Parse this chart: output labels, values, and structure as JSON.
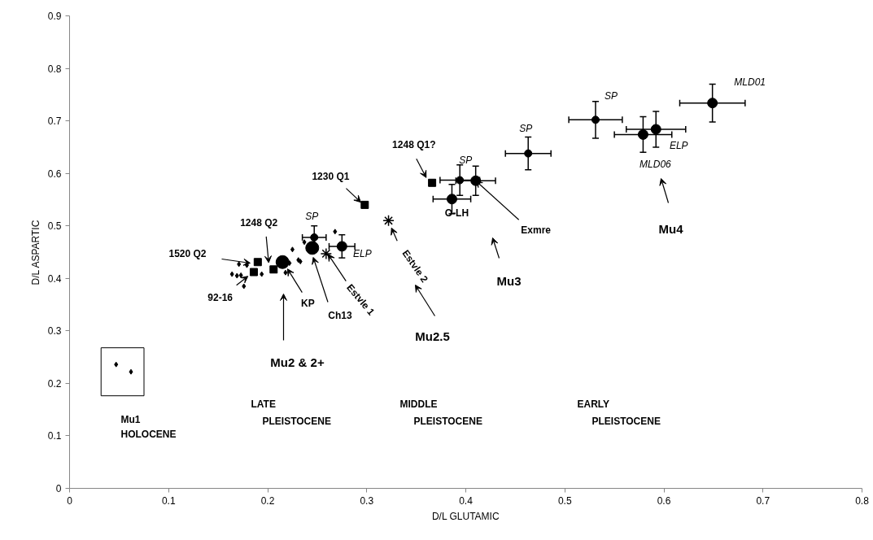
{
  "chart_data": {
    "type": "scatter",
    "xlabel": "D/L GLUTAMIC",
    "ylabel": "D/L ASPARTIC",
    "xlim": [
      0,
      0.8
    ],
    "ylim": [
      0,
      0.9
    ],
    "xticks": [
      0,
      0.1,
      0.2,
      0.3,
      0.4,
      0.5,
      0.6,
      0.7,
      0.8
    ],
    "yticks": [
      0,
      0.1,
      0.2,
      0.3,
      0.4,
      0.5,
      0.6,
      0.7,
      0.8,
      0.9
    ],
    "grid": false,
    "series": [
      {
        "marker": "diamond",
        "color": "#000000",
        "x": [
          0.047,
          0.062
        ],
        "values": [
          0.236,
          0.222
        ]
      },
      {
        "marker": "diamond",
        "color": "#000000",
        "x": [
          0.171,
          0.164,
          0.169,
          0.173,
          0.176,
          0.179,
          0.194,
          0.218,
          0.222,
          0.225,
          0.231,
          0.233,
          0.237,
          0.268
        ],
        "values": [
          0.427,
          0.408,
          0.405,
          0.406,
          0.385,
          0.425,
          0.408,
          0.411,
          0.429,
          0.455,
          0.435,
          0.432,
          0.469,
          0.489
        ]
      },
      {
        "marker": "square",
        "color": "#000000",
        "x": [
          0.19,
          0.186,
          0.206,
          0.298,
          0.366
        ],
        "values": [
          0.431,
          0.412,
          0.417,
          0.54,
          0.582
        ]
      },
      {
        "marker": "cross",
        "color": "#000000",
        "x": [
          0.259,
          0.322
        ],
        "values": [
          0.447,
          0.51
        ]
      },
      {
        "marker": "circle",
        "color": "#000000",
        "x": [
          0.247,
          0.394,
          0.463,
          0.531
        ],
        "values": [
          0.478,
          0.587,
          0.638,
          0.702
        ],
        "errors": [
          0.022,
          0.029,
          0.031,
          0.035
        ],
        "xerrors": [
          0.012,
          0.02,
          0.023,
          0.027
        ]
      },
      {
        "marker": "circle",
        "color": "#000000",
        "x": [
          0.275,
          0.41,
          0.386,
          0.579,
          0.592,
          0.649
        ],
        "values": [
          0.461,
          0.586,
          0.551,
          0.674,
          0.684,
          0.734
        ],
        "errors": [
          0.022,
          0.028,
          0.028,
          0.034,
          0.034,
          0.036
        ],
        "xerrors": [
          0.013,
          0.02,
          0.019,
          0.029,
          0.03,
          0.033
        ]
      },
      {
        "marker": "circle",
        "color": "#000000",
        "x": [
          0.215,
          0.245
        ],
        "values": [
          0.431,
          0.458
        ]
      }
    ],
    "annotations": [
      "1520 Q2",
      {
        "text": "1248 Q2",
        "x": 0.201,
        "y": 0.43
      },
      {
        "text": "92-16",
        "x": 0.18,
        "y": 0.404
      },
      {
        "text": "KP",
        "x": 0.22,
        "y": 0.418
      },
      {
        "text": "Ch13",
        "x": 0.246,
        "y": 0.44
      },
      {
        "text": "Estvle 1",
        "x": 0.261,
        "y": 0.446
      },
      {
        "text": "1230 Q1",
        "x": 0.294,
        "y": 0.545
      },
      {
        "text": "Estvle 2",
        "x": 0.325,
        "y": 0.496
      },
      {
        "text": "1248 Q1?",
        "x": 0.36,
        "y": 0.592
      },
      {
        "text": "Exmre",
        "x": 0.41,
        "y": 0.586
      },
      {
        "text": "SP",
        "x": 0.247,
        "y": 0.478
      },
      {
        "text": "ELP",
        "x": 0.275,
        "y": 0.461
      },
      {
        "text": "SP",
        "x": 0.394,
        "y": 0.587
      },
      {
        "text": "O-LH",
        "x": 0.386,
        "y": 0.551
      },
      {
        "text": "SP",
        "x": 0.463,
        "y": 0.638
      },
      {
        "text": "SP",
        "x": 0.531,
        "y": 0.702
      },
      {
        "text": "MLD06",
        "x": 0.579,
        "y": 0.674
      },
      {
        "text": "ELP",
        "x": 0.592,
        "y": 0.684
      },
      {
        "text": "MLD01",
        "x": 0.649,
        "y": 0.734
      },
      "Mu3",
      "Mu2.5",
      "Mu2 & 2+",
      "Mu4",
      "Mu1",
      "HOLOCENE",
      "LATE",
      "PLEISTOCENE",
      "MIDDLE",
      "PLEISTOCENE",
      "EARLY",
      "PLEISTOCENE"
    ]
  }
}
